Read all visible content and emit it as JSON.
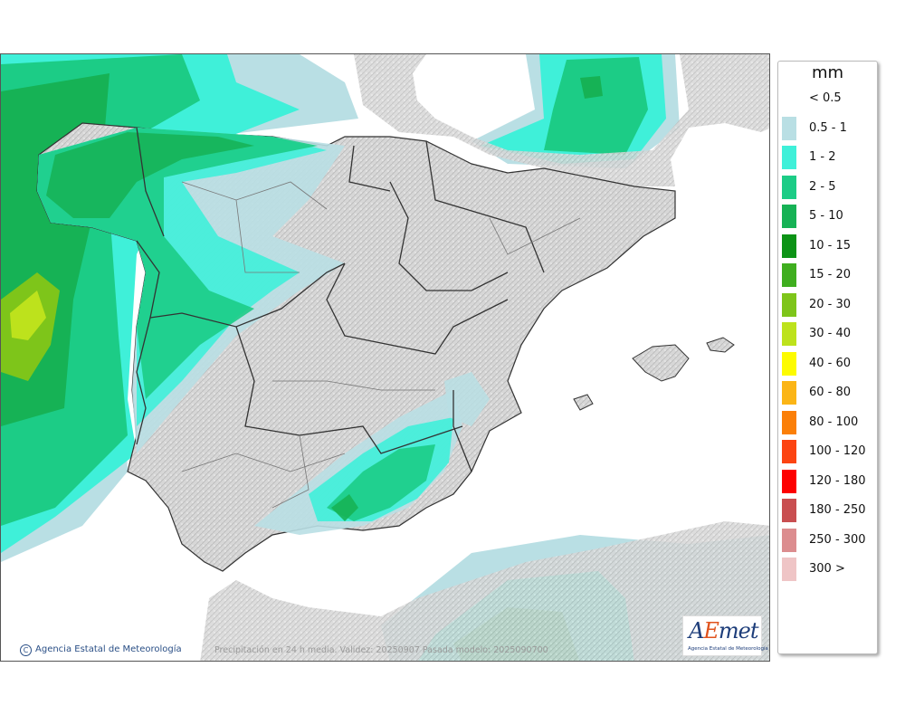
{
  "map": {
    "caption": "Precipitación en 24 h media. Validez: 20250907 Pasada modelo: 2025090700",
    "credit": "Agencia Estatal de Meteorología",
    "credit_icon": "copyright-icon",
    "logo": {
      "word": "AEmet",
      "subtitle": "Agencia Estatal de Meteorología"
    }
  },
  "legend": {
    "title": "mm",
    "items": [
      {
        "label": "< 0.5",
        "color": "#ffffff"
      },
      {
        "label": "0.5 - 1",
        "color": "#b9dfe4"
      },
      {
        "label": "1 - 2",
        "color": "#3ff0d9"
      },
      {
        "label": "2 - 5",
        "color": "#1ccc86"
      },
      {
        "label": "5 - 10",
        "color": "#16b255"
      },
      {
        "label": "10 - 15",
        "color": "#0c9316"
      },
      {
        "label": "15 - 20",
        "color": "#3fae1f"
      },
      {
        "label": "20 - 30",
        "color": "#7ec51a"
      },
      {
        "label": "30 - 40",
        "color": "#bde21c"
      },
      {
        "label": "40 - 60",
        "color": "#fdfb00"
      },
      {
        "label": "60 - 80",
        "color": "#fbb516"
      },
      {
        "label": "80 - 100",
        "color": "#fb7f08"
      },
      {
        "label": "100 - 120",
        "color": "#fc4412"
      },
      {
        "label": "120 - 180",
        "color": "#fd0000"
      },
      {
        "label": "180 - 250",
        "color": "#c94f51"
      },
      {
        "label": "250 - 300",
        "color": "#dc8d8f"
      },
      {
        "label": "300 >",
        "color": "#efc5c6"
      }
    ]
  }
}
